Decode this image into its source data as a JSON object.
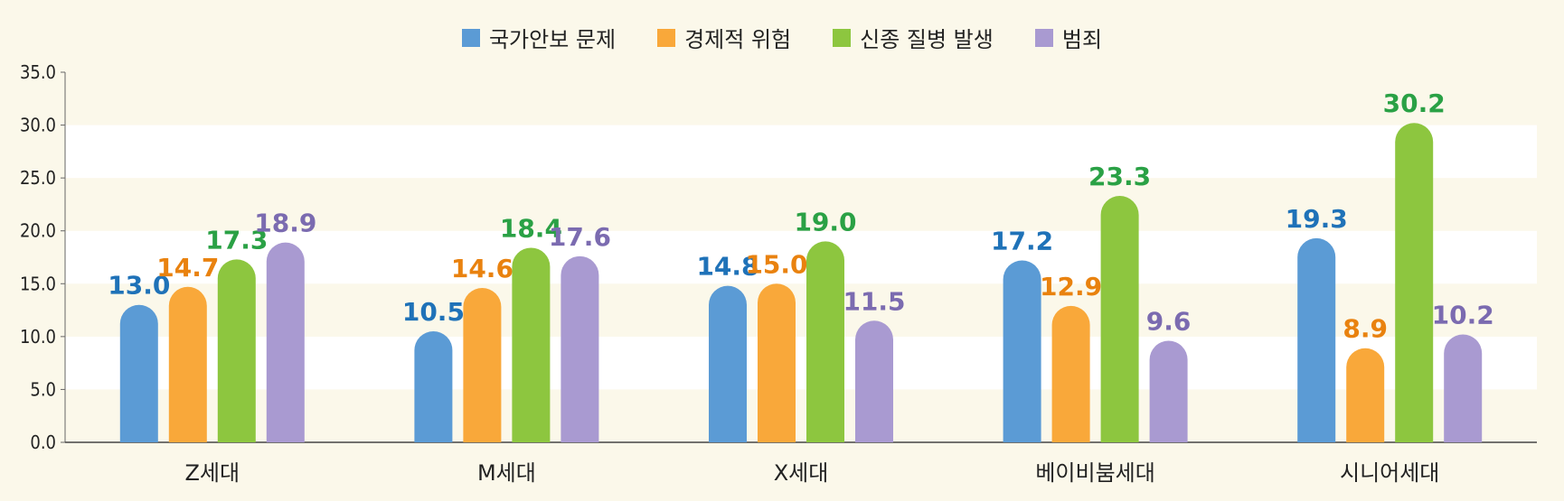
{
  "chart_data": {
    "type": "bar",
    "categories": [
      "Z세대",
      "M세대",
      "X세대",
      "베이비붐세대",
      "시니어세대"
    ],
    "series": [
      {
        "name": "국가안보 문제",
        "color": "#5b9bd5",
        "label_color": "#1f72b8",
        "values": [
          13.0,
          10.5,
          14.8,
          17.2,
          19.3
        ]
      },
      {
        "name": "경제적 위험",
        "color": "#f9a83a",
        "label_color": "#e9820f",
        "values": [
          14.7,
          14.6,
          15.0,
          12.9,
          8.9
        ]
      },
      {
        "name": "신종 질병 발생",
        "color": "#8dc63f",
        "label_color": "#2aa145",
        "values": [
          17.3,
          18.4,
          19.0,
          23.3,
          30.2
        ]
      },
      {
        "name": "범죄",
        "color": "#a99ad1",
        "label_color": "#7b6bb0",
        "values": [
          18.9,
          17.6,
          11.5,
          9.6,
          10.2
        ]
      }
    ],
    "y_ticks": [
      "0.0",
      "5.0",
      "10.0",
      "15.0",
      "20.0",
      "25.0",
      "30.0",
      "35.0"
    ],
    "ylim": [
      0,
      35
    ],
    "title": "",
    "xlabel": "",
    "ylabel": "",
    "legend_position": "top-center",
    "grid": "alternating horizontal bands"
  }
}
